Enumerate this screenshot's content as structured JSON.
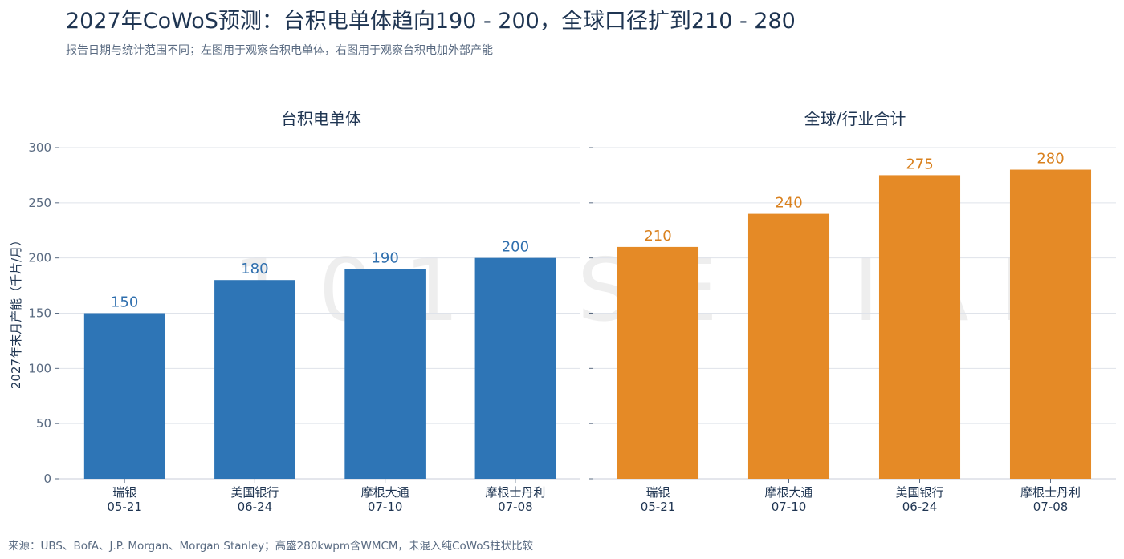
{
  "title": "2027年CoWoS预测：台积电单体趋向190 - 200，全球口径扩到210 - 280",
  "subtitle": "报告日期与统计范围不同；左图用于观察台积电单体，右图用于观察台积电加外部产能",
  "footer": "来源：UBS、BofA、J.P. Morgan、Morgan Stanley；高盛280kwpm含WMCM，未混入纯CoWoS柱状比较",
  "watermark": "101KSEMIAI",
  "chart_data": [
    {
      "type": "bar",
      "title": "台积电单体",
      "ylabel": "2027年末月产能（千片/月）",
      "ylim": [
        0,
        300
      ],
      "yticks": [
        0,
        50,
        100,
        150,
        200,
        250,
        300
      ],
      "grid": true,
      "color": "#2e75b6",
      "categories": [
        {
          "name": "瑞银",
          "date": "05-21"
        },
        {
          "name": "美国银行",
          "date": "06-24"
        },
        {
          "name": "摩根大通",
          "date": "07-10"
        },
        {
          "name": "摩根士丹利",
          "date": "07-08"
        }
      ],
      "values": [
        150,
        180,
        190,
        200
      ]
    },
    {
      "type": "bar",
      "title": "全球/行业合计",
      "ylim": [
        0,
        300
      ],
      "yticks": [
        0,
        50,
        100,
        150,
        200,
        250,
        300
      ],
      "grid": true,
      "color": "#e58a26",
      "categories": [
        {
          "name": "瑞银",
          "date": "05-21"
        },
        {
          "name": "摩根大通",
          "date": "07-10"
        },
        {
          "name": "美国银行",
          "date": "06-24"
        },
        {
          "name": "摩根士丹利",
          "date": "07-08"
        }
      ],
      "values": [
        210,
        240,
        275,
        280
      ]
    }
  ]
}
